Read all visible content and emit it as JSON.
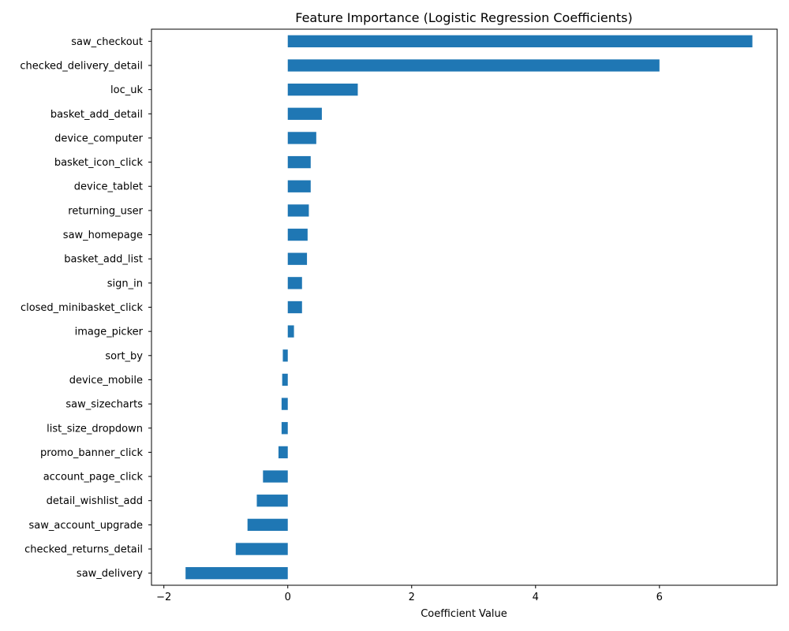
{
  "chart_data": {
    "type": "bar",
    "orientation": "horizontal",
    "title": "Feature Importance (Logistic Regression Coefficients)",
    "xlabel": "Coefficient Value",
    "ylabel": "",
    "xlim": [
      -2.2,
      7.9
    ],
    "xticks": [
      -2,
      0,
      2,
      4,
      6
    ],
    "xtick_labels": [
      "−2",
      "0",
      "2",
      "4",
      "6"
    ],
    "grid": false,
    "bar_color": "#1f77b4",
    "categories": [
      "saw_checkout",
      "checked_delivery_detail",
      "loc_uk",
      "basket_add_detail",
      "device_computer",
      "basket_icon_click",
      "device_tablet",
      "returning_user",
      "saw_homepage",
      "basket_add_list",
      "sign_in",
      "closed_minibasket_click",
      "image_picker",
      "sort_by",
      "device_mobile",
      "saw_sizecharts",
      "list_size_dropdown",
      "promo_banner_click",
      "account_page_click",
      "detail_wishlist_add",
      "saw_account_upgrade",
      "checked_returns_detail",
      "saw_delivery"
    ],
    "values": [
      7.5,
      6.0,
      1.13,
      0.55,
      0.46,
      0.37,
      0.37,
      0.34,
      0.32,
      0.31,
      0.23,
      0.23,
      0.1,
      -0.08,
      -0.09,
      -0.1,
      -0.1,
      -0.15,
      -0.4,
      -0.5,
      -0.65,
      -0.84,
      -1.65
    ]
  }
}
